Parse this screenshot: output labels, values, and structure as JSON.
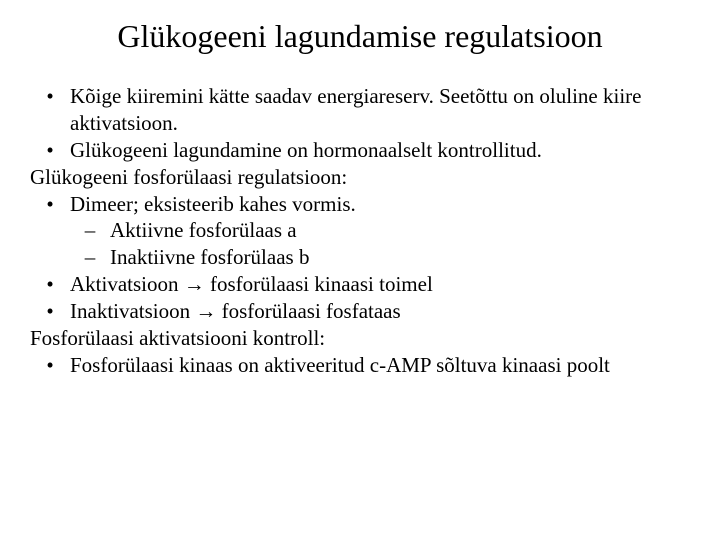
{
  "title": "Glükogeeni lagundamise regulatsioon",
  "lines": {
    "l1": "Kõige kiiremini kätte saadav energiareserv.  Seetõttu on oluline kiire aktivatsioon.",
    "l2": "Glükogeeni lagundamine on hormonaalselt kontrollitud.",
    "l3": "Glükogeeni fosforülaasi regulatsioon:",
    "l4": "Dimeer; eksisteerib kahes vormis.",
    "l5a": "Aktiivne fosforülaas a",
    "l5b": "Inaktiivne fosforülaas b",
    "l6": "Aktivatsioon → fosforülaasi kinaasi toimel",
    "l7": "Inaktivatsioon → fosforülaasi fosfataas",
    "l8": "Fosforülaasi aktivatsiooni kontroll:",
    "l9": "Fosforülaasi kinaas on aktiveeritud c-AMP sõltuva kinaasi poolt"
  },
  "bullets": {
    "dot": "•",
    "dash": "–"
  }
}
